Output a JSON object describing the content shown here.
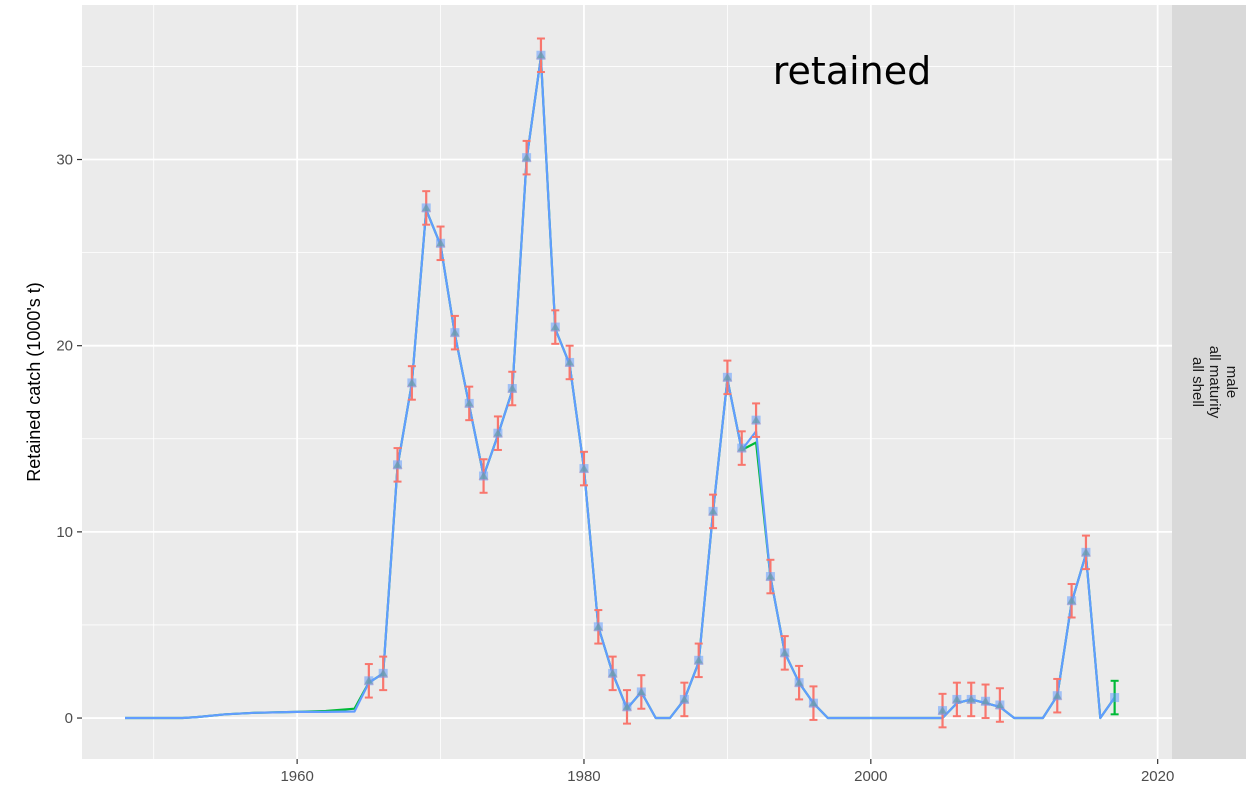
{
  "chart_data": {
    "type": "line",
    "title": "",
    "annotation": "retained",
    "xlabel": "",
    "ylabel": "Retained catch (1000's t)",
    "xlim": [
      1945,
      2021
    ],
    "ylim": [
      -2.2,
      38.3
    ],
    "x_ticks": [
      1960,
      1980,
      2000,
      2020
    ],
    "x_tick_labels": [
      "1960",
      "1980",
      "2000",
      "2020"
    ],
    "y_ticks": [
      0,
      10,
      20,
      30
    ],
    "y_tick_labels": [
      "0",
      "10",
      "20",
      "30"
    ],
    "grid": true,
    "strip_labels": [
      "male",
      "all maturity",
      "all shell"
    ],
    "colors": {
      "panel": "#ebebeb",
      "strip": "#d9d9d9",
      "grid": "#ffffff",
      "obs_red": "#f8766d",
      "obs_green": "#00ba38",
      "obs_blue": "#619cff",
      "line_green": "#00ba38",
      "line_blue": "#619cff"
    },
    "series": [
      {
        "kind": "model",
        "color": "#00ba38",
        "points": [
          [
            1948,
            0
          ],
          [
            1950,
            0
          ],
          [
            1952,
            0
          ],
          [
            1953,
            0.05
          ],
          [
            1955,
            0.2
          ],
          [
            1957,
            0.28
          ],
          [
            1960,
            0.33
          ],
          [
            1962,
            0.38
          ],
          [
            1964,
            0.5
          ],
          [
            1965,
            1.9
          ],
          [
            1966,
            2.4
          ],
          [
            1967,
            13.5
          ],
          [
            1968,
            18
          ],
          [
            1969,
            27.3
          ],
          [
            1970,
            25.4
          ],
          [
            1971,
            20.6
          ],
          [
            1972,
            16.8
          ],
          [
            1973,
            13
          ],
          [
            1974,
            15.2
          ],
          [
            1975,
            17.6
          ],
          [
            1976,
            30
          ],
          [
            1977,
            35.5
          ],
          [
            1978,
            20.9
          ],
          [
            1979,
            19
          ],
          [
            1980,
            13.4
          ],
          [
            1981,
            4.9
          ],
          [
            1982,
            2.4
          ],
          [
            1983,
            0.5
          ],
          [
            1984,
            1.4
          ],
          [
            1985,
            0
          ],
          [
            1986,
            0
          ],
          [
            1987,
            1
          ],
          [
            1988,
            3
          ],
          [
            1989,
            11.1
          ],
          [
            1990,
            18.2
          ],
          [
            1991,
            14.4
          ],
          [
            1992,
            14.8
          ],
          [
            1993,
            7.6
          ],
          [
            1994,
            3.5
          ],
          [
            1995,
            1.9
          ],
          [
            1996,
            0.8
          ],
          [
            1997,
            0
          ],
          [
            2005,
            0
          ],
          [
            2006,
            0.8
          ],
          [
            2007,
            1
          ],
          [
            2008,
            0.8
          ],
          [
            2009,
            0.6
          ],
          [
            2010,
            0
          ],
          [
            2012,
            0
          ],
          [
            2013,
            1.2
          ],
          [
            2014,
            6.2
          ],
          [
            2015,
            8.8
          ],
          [
            2016,
            0
          ],
          [
            2017,
            1.1
          ]
        ]
      },
      {
        "kind": "model",
        "color": "#619cff",
        "points": [
          [
            1948,
            0
          ],
          [
            1950,
            0
          ],
          [
            1952,
            0
          ],
          [
            1953,
            0.05
          ],
          [
            1955,
            0.2
          ],
          [
            1957,
            0.28
          ],
          [
            1960,
            0.33
          ],
          [
            1962,
            0.33
          ],
          [
            1964,
            0.35
          ],
          [
            1965,
            1.9
          ],
          [
            1966,
            2.4
          ],
          [
            1967,
            13.5
          ],
          [
            1968,
            18
          ],
          [
            1969,
            27.3
          ],
          [
            1970,
            25.4
          ],
          [
            1971,
            20.6
          ],
          [
            1972,
            16.8
          ],
          [
            1973,
            13
          ],
          [
            1974,
            15.2
          ],
          [
            1975,
            17.6
          ],
          [
            1976,
            30
          ],
          [
            1977,
            35.5
          ],
          [
            1978,
            20.9
          ],
          [
            1979,
            19
          ],
          [
            1980,
            13.4
          ],
          [
            1981,
            4.9
          ],
          [
            1982,
            2.4
          ],
          [
            1983,
            0.5
          ],
          [
            1984,
            1.4
          ],
          [
            1985,
            0
          ],
          [
            1986,
            0
          ],
          [
            1987,
            1
          ],
          [
            1988,
            3
          ],
          [
            1989,
            11.1
          ],
          [
            1990,
            18.2
          ],
          [
            1991,
            14.4
          ],
          [
            1992,
            15.4
          ],
          [
            1993,
            7.6
          ],
          [
            1994,
            3.5
          ],
          [
            1995,
            1.9
          ],
          [
            1996,
            0.8
          ],
          [
            1997,
            0
          ],
          [
            2005,
            0
          ],
          [
            2006,
            0.8
          ],
          [
            2007,
            1
          ],
          [
            2008,
            0.8
          ],
          [
            2009,
            0.6
          ],
          [
            2010,
            0
          ],
          [
            2012,
            0
          ],
          [
            2013,
            1.2
          ],
          [
            2014,
            6.2
          ],
          [
            2015,
            8.8
          ],
          [
            2016,
            0
          ],
          [
            2017,
            1.1
          ]
        ]
      }
    ],
    "observations": {
      "x": [
        1965,
        1966,
        1967,
        1968,
        1969,
        1970,
        1971,
        1972,
        1973,
        1974,
        1975,
        1976,
        1977,
        1978,
        1979,
        1980,
        1981,
        1982,
        1983,
        1984,
        1987,
        1988,
        1989,
        1990,
        1991,
        1992,
        1993,
        1994,
        1995,
        1996,
        2005,
        2006,
        2007,
        2008,
        2009,
        2013,
        2014,
        2015,
        2017
      ],
      "y": [
        2,
        2.4,
        13.6,
        18,
        27.4,
        25.5,
        20.7,
        16.9,
        13,
        15.3,
        17.7,
        30.1,
        35.6,
        21,
        19.1,
        13.4,
        4.9,
        2.4,
        0.6,
        1.4,
        1,
        3.1,
        11.1,
        18.3,
        14.5,
        16,
        7.6,
        3.5,
        1.9,
        0.8,
        0.4,
        1,
        1,
        0.9,
        0.7,
        1.2,
        6.3,
        8.9,
        1.1
      ],
      "err": [
        0.9,
        0.9,
        0.9,
        0.9,
        0.9,
        0.9,
        0.9,
        0.9,
        0.9,
        0.9,
        0.9,
        0.9,
        0.9,
        0.9,
        0.9,
        0.9,
        0.9,
        0.9,
        0.9,
        0.9,
        0.9,
        0.9,
        0.9,
        0.9,
        0.9,
        0.9,
        0.9,
        0.9,
        0.9,
        0.9,
        0.9,
        0.9,
        0.9,
        0.9,
        0.9,
        0.9,
        0.9,
        0.9,
        0.9
      ],
      "green_only_x": [
        2017
      ]
    }
  }
}
